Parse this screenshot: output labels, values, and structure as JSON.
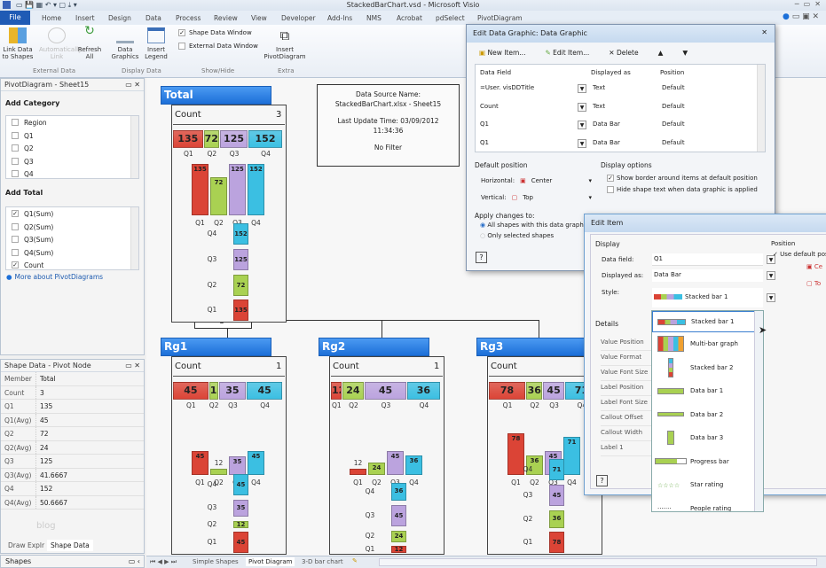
{
  "window": {
    "title": "StackedBarChart.vsd - Microsoft Visio"
  },
  "ribbon": {
    "file_tab": "File",
    "tabs": [
      "Home",
      "Insert",
      "Design",
      "Data",
      "Process",
      "Review",
      "View",
      "Developer",
      "Add-Ins",
      "NMS",
      "Acrobat",
      "pdSelect",
      "PivotDiagram"
    ],
    "buttons": {
      "link_data": "Link Data to Shapes",
      "automatically_link": "Automatically Link",
      "refresh": "Refresh All",
      "data_graphics": "Data Graphics",
      "insert_legend": "Insert Legend",
      "insert_pivot": "Insert PivotDiagram"
    },
    "checks": [
      {
        "label": "Shape Data Window",
        "checked": true
      },
      {
        "label": "External Data Window",
        "checked": false
      }
    ],
    "groups": [
      "External Data",
      "Display Data",
      "Show/Hide",
      "Extra"
    ]
  },
  "pivot_panel": {
    "title": "PivotDiagram - Sheet15",
    "add_category": "Add Category",
    "categories": [
      "Region",
      "Q1",
      "Q2",
      "Q3",
      "Q4"
    ],
    "add_total": "Add Total",
    "totals": [
      {
        "label": "Q1(Sum)",
        "checked": true
      },
      {
        "label": "Q2(Sum)",
        "checked": false
      },
      {
        "label": "Q3(Sum)",
        "checked": false
      },
      {
        "label": "Q4(Sum)",
        "checked": false
      },
      {
        "label": "Count",
        "checked": true
      }
    ],
    "more_link": "More about PivotDiagrams"
  },
  "shape_data": {
    "title": "Shape Data - Pivot Node",
    "rows": [
      [
        "Member",
        "Total"
      ],
      [
        "Count",
        "3"
      ],
      [
        "Q1",
        "135"
      ],
      [
        "Q1(Avg)",
        "45"
      ],
      [
        "Q2",
        "72"
      ],
      [
        "Q2(Avg)",
        "24"
      ],
      [
        "Q3",
        "125"
      ],
      [
        "Q3(Avg)",
        "41.6667"
      ],
      [
        "Q4",
        "152"
      ],
      [
        "Q4(Avg)",
        "50.6667"
      ]
    ],
    "watermark": "blog",
    "tabs": [
      "Draw Explr",
      "Shape Data"
    ],
    "shapes_title": "Shapes"
  },
  "diagram": {
    "colors": {
      "Q1": "#db4436",
      "Q2": "#a9d152",
      "Q3": "#bba3de",
      "Q4": "#3bbfe2"
    },
    "quarters": [
      "Q1",
      "Q2",
      "Q3",
      "Q4"
    ],
    "count_label": "Count",
    "category_node": "Region",
    "nodes": [
      {
        "title": "Total",
        "count": "3",
        "values": [
          135,
          72,
          125,
          152
        ]
      },
      {
        "title": "Rg1",
        "count": "1",
        "values": [
          45,
          12,
          35,
          45
        ]
      },
      {
        "title": "Rg2",
        "count": "1",
        "values": [
          12,
          24,
          45,
          36
        ]
      },
      {
        "title": "Rg3",
        "count": "1",
        "values": [
          78,
          36,
          45,
          71
        ]
      }
    ],
    "source_box": {
      "line1": "Data Source Name:",
      "line2": "StackedBarChart.xlsx - Sheet15",
      "line3": "Last Update Time: 03/09/2012",
      "line4": "11:34:36",
      "line5": "No Filter"
    }
  },
  "edit_data_graphic": {
    "title": "Edit Data Graphic: Data Graphic",
    "toolbar": {
      "new": "New Item...",
      "edit": "Edit Item...",
      "delete": "Delete"
    },
    "columns": [
      "Data Field",
      "Displayed as",
      "Position"
    ],
    "rows": [
      [
        "=User. visDDTitle",
        "Text",
        "Default"
      ],
      [
        "Count",
        "Text",
        "Default"
      ],
      [
        "Q1",
        "Data Bar",
        "Default"
      ],
      [
        "Q1",
        "Data Bar",
        "Default"
      ]
    ],
    "default_position": "Default position",
    "horizontal_label": "Horizontal:",
    "horizontal_value": "Center",
    "vertical_label": "Vertical:",
    "vertical_value": "Top",
    "display_options": "Display options",
    "opt1": "Show border around items at default position",
    "opt1_checked": true,
    "opt2": "Hide shape text when data graphic is applied",
    "opt2_checked": false,
    "apply_label": "Apply changes to:",
    "apply1": "All shapes with this data graphic",
    "apply2": "Only selected shapes"
  },
  "edit_item": {
    "title": "Edit Item",
    "display": "Display",
    "data_field_label": "Data field:",
    "data_field": "Q1",
    "displayed_as_label": "Displayed as:",
    "displayed_as": "Data Bar",
    "style_label": "Style:",
    "style": "Stacked bar 1",
    "details": "Details",
    "detail_rows": [
      "Value Position",
      "Value Format",
      "Value Font Size",
      "Label Position",
      "Label Font Size",
      "Callout Offset",
      "Callout Width",
      "Label 1"
    ],
    "position": "Position",
    "use_default": "Use default position",
    "style_options": [
      "Stacked bar 1",
      "Multi-bar graph",
      "Stacked bar 2",
      "Data bar 1",
      "Data bar 2",
      "Data bar 3",
      "Progress bar",
      "Star rating",
      "People rating"
    ]
  },
  "page_tabs": [
    "Simple Shapes",
    "Pivot Diagram",
    "3-D bar chart"
  ]
}
